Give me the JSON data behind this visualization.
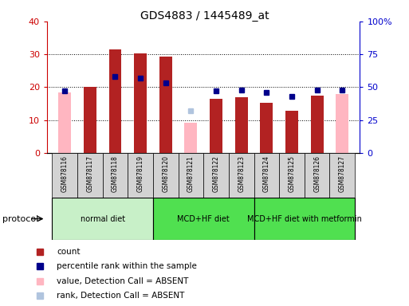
{
  "title": "GDS4883 / 1445489_at",
  "samples": [
    "GSM878116",
    "GSM878117",
    "GSM878118",
    "GSM878119",
    "GSM878120",
    "GSM878121",
    "GSM878122",
    "GSM878123",
    "GSM878124",
    "GSM878125",
    "GSM878126",
    "GSM878127"
  ],
  "count_values": [
    null,
    20.0,
    31.5,
    30.3,
    29.2,
    null,
    16.5,
    17.0,
    15.2,
    12.8,
    17.5,
    null
  ],
  "count_absent": [
    18.5,
    null,
    null,
    null,
    null,
    9.2,
    null,
    null,
    null,
    null,
    null,
    18.0
  ],
  "percentile_values": [
    47,
    null,
    58,
    57,
    53,
    null,
    47,
    48,
    46,
    43,
    48,
    48
  ],
  "percentile_absent": [
    null,
    null,
    null,
    null,
    null,
    32,
    null,
    null,
    null,
    null,
    null,
    null
  ],
  "left_ylim": [
    0,
    40
  ],
  "right_ylim": [
    0,
    100
  ],
  "left_yticks": [
    0,
    10,
    20,
    30,
    40
  ],
  "right_yticks": [
    0,
    25,
    50,
    75,
    100
  ],
  "right_yticklabels": [
    "0",
    "25",
    "50",
    "75",
    "100%"
  ],
  "protocol_ranges": [
    {
      "label": "normal diet",
      "start": 0,
      "end": 4,
      "color": "#c8f0c8"
    },
    {
      "label": "MCD+HF diet",
      "start": 4,
      "end": 8,
      "color": "#50e050"
    },
    {
      "label": "MCD+HF diet with metformin",
      "start": 8,
      "end": 12,
      "color": "#50e050"
    }
  ],
  "bar_color_present": "#b22222",
  "bar_color_absent": "#ffb6c1",
  "dot_color_present": "#00008b",
  "dot_color_absent": "#b0c4de",
  "bar_width": 0.5,
  "left_ylabel_color": "#cc0000",
  "right_ylabel_color": "#0000cc",
  "xtick_bg": "#d3d3d3"
}
